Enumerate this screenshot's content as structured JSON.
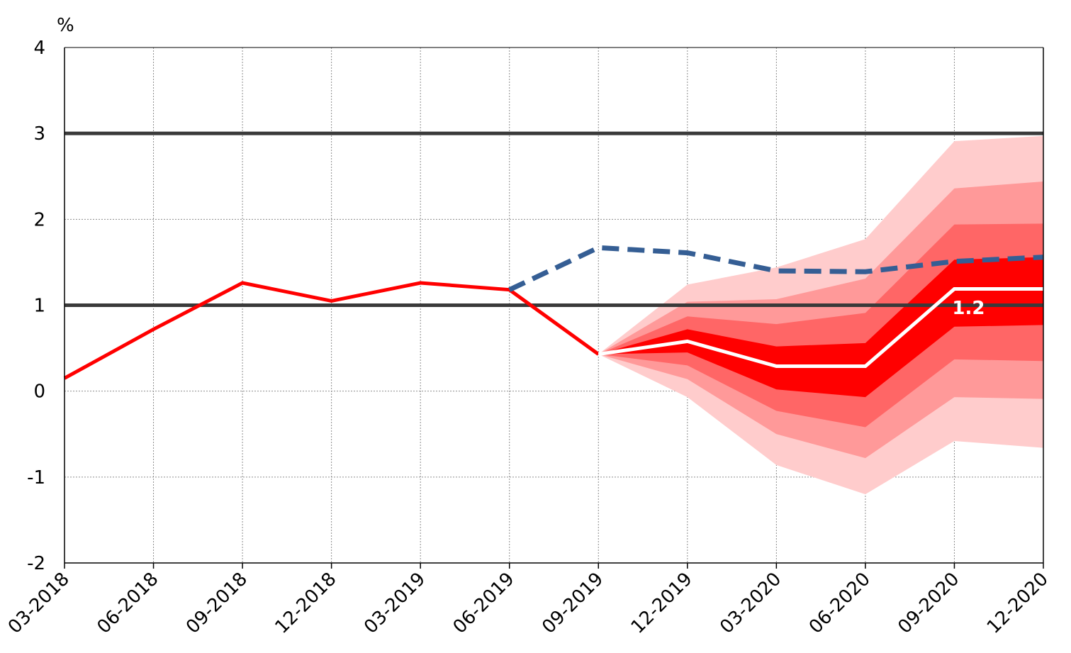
{
  "chart_data": {
    "type": "line",
    "unit_label": "%",
    "ylim": [
      -2,
      4
    ],
    "yticks": [
      "4",
      "3",
      "2",
      "1",
      "0",
      "-1",
      "-2"
    ],
    "categories": [
      "03-2018",
      "06-2018",
      "09-2018",
      "12-2018",
      "03-2019",
      "06-2019",
      "09-2019",
      "12-2019",
      "03-2020",
      "06-2020",
      "09-2020",
      "12-2020"
    ],
    "grid": true,
    "reference_lines": [
      3,
      1
    ],
    "series": [
      {
        "role": "actual",
        "color": "#ff0000",
        "style": "solid",
        "x": [
          "03-2018",
          "06-2018",
          "09-2018",
          "12-2018",
          "03-2019",
          "06-2019",
          "09-2019"
        ],
        "values": [
          0.15,
          0.72,
          1.26,
          1.05,
          1.26,
          1.18,
          0.43
        ]
      },
      {
        "role": "previous-forecast",
        "color": "#355e94",
        "style": "dashed",
        "x": [
          "06-2019",
          "09-2019",
          "12-2019",
          "03-2020",
          "06-2020",
          "09-2020",
          "12-2020"
        ],
        "values": [
          1.18,
          1.67,
          1.61,
          1.4,
          1.39,
          1.51,
          1.56
        ]
      },
      {
        "role": "central-projection",
        "color": "#ffffff",
        "style": "solid",
        "x": [
          "09-2019",
          "12-2019",
          "03-2020",
          "06-2020",
          "09-2020",
          "12-2020"
        ],
        "values": [
          0.43,
          0.58,
          0.29,
          0.29,
          1.19,
          1.19
        ]
      }
    ],
    "fan": {
      "x": [
        "09-2019",
        "12-2019",
        "03-2020",
        "06-2020",
        "09-2020",
        "12-2020"
      ],
      "bands": [
        {
          "color": "#ffcccc",
          "lower": [
            0.43,
            -0.07,
            -0.86,
            -1.2,
            -0.58,
            -0.66
          ],
          "upper": [
            0.43,
            1.24,
            1.44,
            1.77,
            2.91,
            2.97
          ]
        },
        {
          "color": "#ff9999",
          "lower": [
            0.43,
            0.14,
            -0.5,
            -0.78,
            -0.07,
            -0.09
          ],
          "upper": [
            0.43,
            1.04,
            1.07,
            1.31,
            2.36,
            2.44
          ]
        },
        {
          "color": "#ff6666",
          "lower": [
            0.43,
            0.3,
            -0.23,
            -0.42,
            0.37,
            0.35
          ],
          "upper": [
            0.43,
            0.87,
            0.78,
            0.91,
            1.94,
            1.95
          ]
        },
        {
          "color": "#ff0000",
          "lower": [
            0.43,
            0.45,
            0.02,
            -0.07,
            0.75,
            0.77
          ],
          "upper": [
            0.43,
            0.72,
            0.52,
            0.56,
            1.53,
            1.56
          ]
        }
      ]
    },
    "annotations": [
      {
        "text": "1.2",
        "x": "09-2020",
        "y": 0.97
      }
    ]
  }
}
